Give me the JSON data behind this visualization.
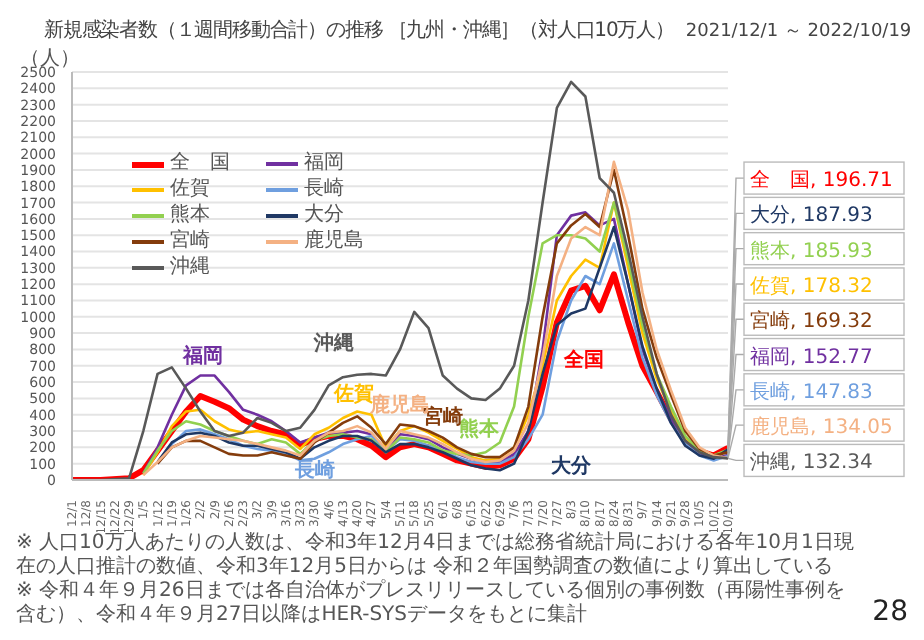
{
  "chart_data": {
    "type": "line",
    "title": "新規感染者数（１週間移動合計）の推移 ［九州・沖縄］（対人口10万人）",
    "subtitle": "2021/12/1 ～ 2022/10/19",
    "ylabel": "（人）",
    "x": [
      "2021-12-01",
      "2021-12-15",
      "2021-12-29",
      "2022-01-05",
      "2022-01-12",
      "2022-01-19",
      "2022-01-26",
      "2022-02-02",
      "2022-02-09",
      "2022-02-16",
      "2022-02-23",
      "2022-03-02",
      "2022-03-09",
      "2022-03-16",
      "2022-03-23",
      "2022-03-30",
      "2022-04-06",
      "2022-04-13",
      "2022-04-20",
      "2022-04-27",
      "2022-05-04",
      "2022-05-11",
      "2022-05-18",
      "2022-05-25",
      "2022-06-01",
      "2022-06-08",
      "2022-06-15",
      "2022-06-22",
      "2022-06-29",
      "2022-07-06",
      "2022-07-13",
      "2022-07-20",
      "2022-07-27",
      "2022-08-03",
      "2022-08-10",
      "2022-08-17",
      "2022-08-24",
      "2022-08-31",
      "2022-09-07",
      "2022-09-14",
      "2022-09-21",
      "2022-09-28",
      "2022-10-05",
      "2022-10-12",
      "2022-10-19"
    ],
    "series": [
      {
        "name": "全　国",
        "color": "#ff0000",
        "values": [
          0,
          0,
          10,
          60,
          180,
          300,
          420,
          515,
          480,
          440,
          370,
          330,
          300,
          280,
          215,
          250,
          270,
          270,
          250,
          210,
          140,
          200,
          220,
          200,
          160,
          120,
          100,
          80,
          90,
          130,
          250,
          570,
          965,
          1160,
          1190,
          1040,
          1260,
          965,
          700,
          540,
          374,
          246,
          177,
          150,
          196.71
        ]
      },
      {
        "name": "福岡",
        "color": "#7030a0",
        "values": [
          null,
          null,
          null,
          40,
          200,
          400,
          580,
          640,
          640,
          540,
          430,
          400,
          360,
          300,
          230,
          260,
          290,
          290,
          300,
          280,
          190,
          280,
          270,
          250,
          200,
          160,
          130,
          110,
          110,
          160,
          300,
          800,
          1500,
          1620,
          1640,
          1560,
          1600,
          1200,
          800,
          550,
          380,
          240,
          160,
          130,
          152.77
        ]
      },
      {
        "name": "佐賀",
        "color": "#ffc000",
        "values": [
          null,
          null,
          null,
          30,
          170,
          330,
          420,
          430,
          360,
          310,
          290,
          300,
          280,
          260,
          190,
          280,
          320,
          380,
          420,
          400,
          200,
          300,
          330,
          290,
          240,
          190,
          140,
          120,
          130,
          200,
          400,
          700,
          1100,
          1250,
          1350,
          1300,
          1700,
          1300,
          900,
          620,
          420,
          260,
          180,
          150,
          178.32
        ]
      },
      {
        "name": "長崎",
        "color": "#6f9fdf",
        "values": [
          null,
          null,
          null,
          null,
          100,
          220,
          300,
          310,
          280,
          250,
          210,
          190,
          180,
          160,
          120,
          130,
          170,
          220,
          250,
          270,
          180,
          250,
          240,
          210,
          180,
          140,
          110,
          100,
          100,
          140,
          250,
          400,
          850,
          1100,
          1250,
          1200,
          1450,
          1100,
          750,
          520,
          350,
          220,
          150,
          120,
          147.83
        ]
      },
      {
        "name": "熊本",
        "color": "#92d050",
        "values": [
          null,
          null,
          null,
          40,
          180,
          300,
          360,
          340,
          300,
          270,
          240,
          220,
          250,
          230,
          160,
          240,
          270,
          280,
          260,
          250,
          170,
          260,
          250,
          230,
          180,
          160,
          150,
          170,
          230,
          450,
          1000,
          1450,
          1500,
          1500,
          1480,
          1400,
          1700,
          1350,
          950,
          650,
          450,
          270,
          180,
          150,
          185.93
        ]
      },
      {
        "name": "大分",
        "color": "#1f3864",
        "values": [
          null,
          null,
          null,
          null,
          110,
          230,
          280,
          290,
          270,
          230,
          210,
          210,
          190,
          170,
          130,
          200,
          240,
          270,
          270,
          240,
          170,
          220,
          220,
          200,
          170,
          130,
          90,
          70,
          60,
          100,
          300,
          650,
          950,
          1020,
          1050,
          1300,
          1550,
          1200,
          820,
          560,
          350,
          210,
          150,
          130,
          187.93
        ]
      },
      {
        "name": "宮崎",
        "color": "#843c0c",
        "values": [
          null,
          null,
          null,
          null,
          100,
          200,
          240,
          240,
          200,
          160,
          150,
          150,
          170,
          150,
          130,
          230,
          290,
          350,
          390,
          320,
          220,
          340,
          330,
          300,
          260,
          200,
          160,
          140,
          140,
          200,
          450,
          1000,
          1450,
          1560,
          1630,
          1550,
          1900,
          1500,
          1050,
          750,
          520,
          300,
          190,
          150,
          169.32
        ]
      },
      {
        "name": "鹿児島",
        "color": "#f4b183",
        "values": [
          null,
          null,
          null,
          30,
          110,
          200,
          240,
          270,
          260,
          250,
          240,
          220,
          200,
          180,
          150,
          240,
          290,
          300,
          330,
          290,
          190,
          300,
          280,
          260,
          220,
          170,
          130,
          110,
          120,
          180,
          350,
          750,
          1250,
          1480,
          1550,
          1500,
          1950,
          1650,
          1150,
          800,
          550,
          320,
          200,
          150,
          134.05
        ]
      },
      {
        "name": "沖縄",
        "color": "#595959",
        "values": [
          0,
          0,
          10,
          300,
          650,
          690,
          560,
          420,
          300,
          270,
          290,
          380,
          350,
          300,
          320,
          430,
          580,
          630,
          645,
          650,
          640,
          800,
          1030,
          930,
          640,
          560,
          500,
          490,
          560,
          700,
          1100,
          1700,
          2280,
          2440,
          2350,
          1850,
          1760,
          1400,
          1000,
          650,
          400,
          240,
          170,
          140,
          132.34
        ]
      }
    ],
    "xlim": [
      "2021-12-01",
      "2022-10-19"
    ],
    "ylim": [
      0,
      2500
    ],
    "yticks": [
      0,
      100,
      200,
      300,
      400,
      500,
      600,
      700,
      800,
      900,
      1000,
      1100,
      1200,
      1300,
      1400,
      1500,
      1600,
      1700,
      1800,
      1900,
      2000,
      2100,
      2200,
      2300,
      2400,
      2500
    ],
    "xticks": [
      {
        "value": "2021-12-01",
        "label": "12/1"
      },
      {
        "value": "2021-12-08",
        "label": "12/8"
      },
      {
        "value": "2021-12-15",
        "label": "12/15"
      },
      {
        "value": "2021-12-22",
        "label": "12/22"
      },
      {
        "value": "2021-12-29",
        "label": "12/29"
      },
      {
        "value": "2022-01-05",
        "label": "1/5"
      },
      {
        "value": "2022-01-12",
        "label": "1/12"
      },
      {
        "value": "2022-01-19",
        "label": "1/19"
      },
      {
        "value": "2022-01-26",
        "label": "1/26"
      },
      {
        "value": "2022-02-02",
        "label": "2/2"
      },
      {
        "value": "2022-02-09",
        "label": "2/9"
      },
      {
        "value": "2022-02-16",
        "label": "2/16"
      },
      {
        "value": "2022-02-23",
        "label": "2/23"
      },
      {
        "value": "2022-03-02",
        "label": "3/2"
      },
      {
        "value": "2022-03-09",
        "label": "3/9"
      },
      {
        "value": "2022-03-16",
        "label": "3/16"
      },
      {
        "value": "2022-03-23",
        "label": "3/23"
      },
      {
        "value": "2022-03-30",
        "label": "3/30"
      },
      {
        "value": "2022-04-06",
        "label": "4/6"
      },
      {
        "value": "2022-04-13",
        "label": "4/13"
      },
      {
        "value": "2022-04-20",
        "label": "4/20"
      },
      {
        "value": "2022-04-27",
        "label": "4/27"
      },
      {
        "value": "2022-05-04",
        "label": "5/4"
      },
      {
        "value": "2022-05-11",
        "label": "5/11"
      },
      {
        "value": "2022-05-18",
        "label": "5/18"
      },
      {
        "value": "2022-05-25",
        "label": "5/25"
      },
      {
        "value": "2022-06-01",
        "label": "6/1"
      },
      {
        "value": "2022-06-08",
        "label": "6/8"
      },
      {
        "value": "2022-06-15",
        "label": "6/15"
      },
      {
        "value": "2022-06-22",
        "label": "6/22"
      },
      {
        "value": "2022-06-29",
        "label": "6/29"
      },
      {
        "value": "2022-07-06",
        "label": "7/6"
      },
      {
        "value": "2022-07-13",
        "label": "7/13"
      },
      {
        "value": "2022-07-20",
        "label": "7/20"
      },
      {
        "value": "2022-07-27",
        "label": "7/27"
      },
      {
        "value": "2022-08-03",
        "label": "8/3"
      },
      {
        "value": "2022-08-10",
        "label": "8/10"
      },
      {
        "value": "2022-08-17",
        "label": "8/17"
      },
      {
        "value": "2022-08-24",
        "label": "8/24"
      },
      {
        "value": "2022-08-31",
        "label": "8/31"
      },
      {
        "value": "2022-09-07",
        "label": "9/7"
      },
      {
        "value": "2022-09-14",
        "label": "9/14"
      },
      {
        "value": "2022-09-21",
        "label": "9/21"
      },
      {
        "value": "2022-09-28",
        "label": "9/28"
      },
      {
        "value": "2022-10-05",
        "label": "10/5"
      },
      {
        "value": "2022-10-12",
        "label": "10/12"
      },
      {
        "value": "2022-10-19",
        "label": "10/19"
      }
    ],
    "grid": "y",
    "legend": "top left",
    "marker": "none",
    "line_style": "solid",
    "annotations": [
      "全国",
      "福岡",
      "佐賀",
      "長崎",
      "熊本",
      "大分",
      "宮崎",
      "鹿児島",
      "沖縄",
      {
        "text": "全　国, 196.71",
        "x": "2022-10-19",
        "y": 196.71
      },
      {
        "text": "大分, 187.93",
        "x": "2022-10-19",
        "y": 187.93
      },
      {
        "text": "熊本, 185.93",
        "x": "2022-10-19",
        "y": 185.93
      },
      {
        "text": "佐賀, 178.32",
        "x": "2022-10-19",
        "y": 178.32
      },
      {
        "text": "宮崎, 169.32",
        "x": "2022-10-19",
        "y": 169.32
      },
      {
        "text": "福岡, 152.77",
        "x": "2022-10-19",
        "y": 152.77
      },
      {
        "text": "長崎, 147.83",
        "x": "2022-10-19",
        "y": 147.83
      },
      {
        "text": "鹿児島, 134.05",
        "x": "2022-10-19",
        "y": 134.05
      },
      {
        "text": "沖縄, 132.34",
        "x": "2022-10-19",
        "y": 132.34
      },
      "※ 人口10万人あたりの人数は、令和3年12月4日までは総務省統計局における各年10月1日現在の人口推計の数値、令和3年12月5日からは 令和２年国勢調査の数値により算出している",
      "※ 令和４年９月26日までは各自治体がプレスリリースしている個別の事例数（再陽性事例を含む）、令和４年９月27日以降はHER-SYSデータをもとに集計",
      "28"
    ]
  }
}
